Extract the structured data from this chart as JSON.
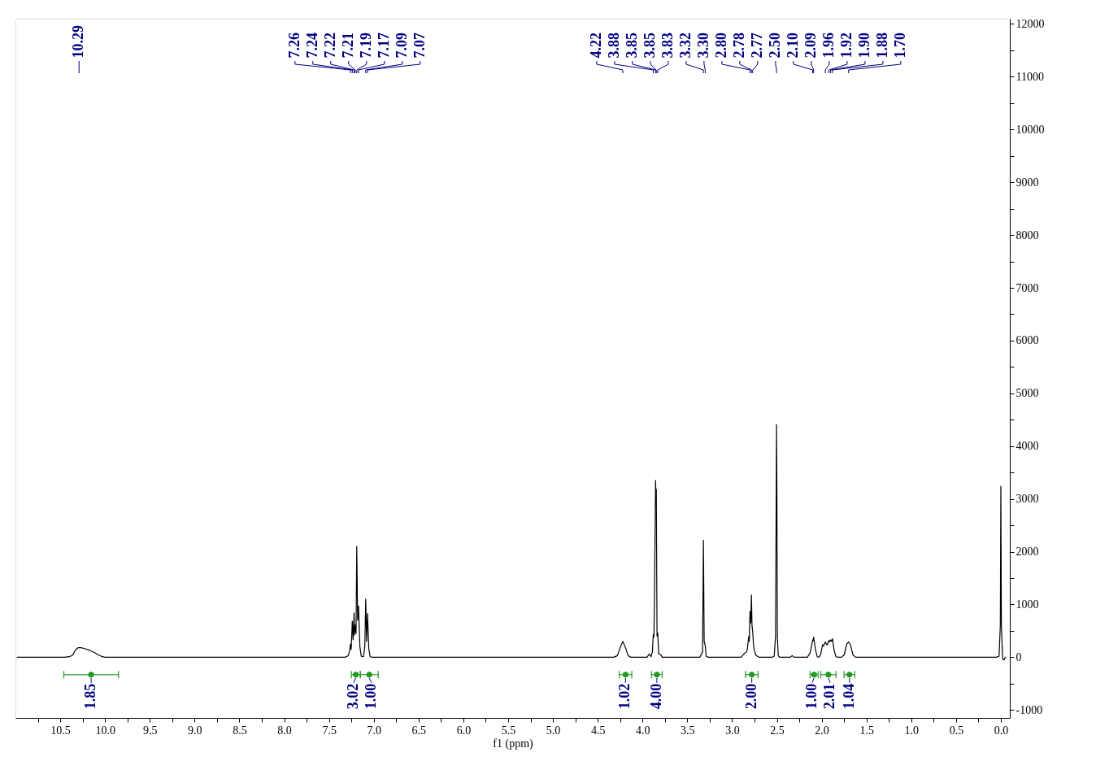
{
  "chart_data": {
    "type": "line",
    "xlabel": "f1 (ppm)",
    "x": [
      10.98,
      10.45,
      10.4,
      10.36,
      10.33,
      10.3,
      10.27,
      10.22,
      10.17,
      10.12,
      10.07,
      10.03,
      10.0,
      7.32,
      7.285,
      7.27,
      7.26,
      7.252,
      7.24,
      7.231,
      7.22,
      7.215,
      7.207,
      7.198,
      7.19,
      7.18,
      7.17,
      7.155,
      7.14,
      7.115,
      7.1,
      7.09,
      7.08,
      7.07,
      7.055,
      7.04,
      7.02,
      4.32,
      4.28,
      4.25,
      4.22,
      4.19,
      4.16,
      4.13,
      3.95,
      3.925,
      3.905,
      3.89,
      3.88,
      3.873,
      3.866,
      3.854,
      3.85,
      3.846,
      3.838,
      3.83,
      3.82,
      3.797,
      3.78,
      3.36,
      3.33,
      3.32,
      3.312,
      3.3,
      3.29,
      3.27,
      2.9,
      2.864,
      2.84,
      2.83,
      2.815,
      2.808,
      2.8,
      2.792,
      2.784,
      2.778,
      2.77,
      2.76,
      2.749,
      2.735,
      2.72,
      2.7,
      2.55,
      2.53,
      2.515,
      2.504,
      2.5,
      2.495,
      2.485,
      2.47,
      2.35,
      2.33,
      2.31,
      2.16,
      2.13,
      2.1,
      2.095,
      2.09,
      2.07,
      2.05,
      2.03,
      2.01,
      1.99,
      1.98,
      1.96,
      1.94,
      1.92,
      1.91,
      1.9,
      1.89,
      1.88,
      1.86,
      1.84,
      1.82,
      1.78,
      1.75,
      1.72,
      1.7,
      1.68,
      1.65,
      1.62,
      0.05,
      0.02,
      0.006,
      0.0,
      -0.006,
      -0.02,
      -0.035,
      -0.05
    ],
    "series": [
      {
        "color": "#000000",
        "values": [
          0,
          0,
          10,
          40,
          140,
          180,
          180,
          160,
          130,
          90,
          40,
          10,
          0,
          0,
          30,
          120,
          250,
          150,
          680,
          330,
          840,
          420,
          610,
          450,
          2100,
          700,
          970,
          200,
          20,
          10,
          200,
          1100,
          300,
          830,
          150,
          10,
          0,
          0,
          30,
          180,
          300,
          180,
          30,
          0,
          0,
          60,
          10,
          100,
          430,
          380,
          1200,
          3350,
          2900,
          3180,
          400,
          460,
          60,
          50,
          0,
          0,
          100,
          2220,
          300,
          220,
          20,
          0,
          0,
          70,
          100,
          150,
          390,
          300,
          870,
          650,
          1180,
          600,
          490,
          200,
          120,
          40,
          20,
          0,
          0,
          20,
          400,
          4410,
          3150,
          400,
          30,
          0,
          0,
          30,
          0,
          0,
          80,
          330,
          310,
          380,
          150,
          10,
          0,
          60,
          240,
          210,
          290,
          230,
          320,
          290,
          330,
          300,
          350,
          120,
          10,
          0,
          0,
          40,
          250,
          290,
          240,
          40,
          0,
          0,
          20,
          600,
          3240,
          600,
          -40,
          -50,
          0
        ]
      },
      {
        "type": "scatter",
        "color": "#229922",
        "marker": "circle",
        "x": [
          10.155,
          7.2,
          7.05,
          4.19,
          3.84,
          2.78,
          2.085,
          1.925,
          1.69
        ],
        "values": [
          -330,
          -330,
          -330,
          -330,
          -330,
          -330,
          -330,
          -330,
          -330
        ],
        "xerrors": [
          [
            9.85,
            10.46
          ],
          [
            7.15,
            7.25
          ],
          [
            6.95,
            7.15
          ],
          [
            4.12,
            4.26
          ],
          [
            3.78,
            3.9
          ],
          [
            2.71,
            2.85
          ],
          [
            2.04,
            2.13
          ],
          [
            1.84,
            2.01
          ],
          [
            1.63,
            1.75
          ]
        ]
      }
    ],
    "xlim": [
      11.0,
      -0.1
    ],
    "xticks": [
      {
        "value": 10.75,
        "label": null
      },
      {
        "value": 10.5,
        "label": "10.5"
      },
      {
        "value": 10.25,
        "label": null
      },
      {
        "value": 10.0,
        "label": "10.0"
      },
      {
        "value": 9.75,
        "label": null
      },
      {
        "value": 9.5,
        "label": "9.5"
      },
      {
        "value": 9.25,
        "label": null
      },
      {
        "value": 9.0,
        "label": "9.0"
      },
      {
        "value": 8.75,
        "label": null
      },
      {
        "value": 8.5,
        "label": "8.5"
      },
      {
        "value": 8.25,
        "label": null
      },
      {
        "value": 8.0,
        "label": "8.0"
      },
      {
        "value": 7.75,
        "label": null
      },
      {
        "value": 7.5,
        "label": "7.5"
      },
      {
        "value": 7.25,
        "label": null
      },
      {
        "value": 7.0,
        "label": "7.0"
      },
      {
        "value": 6.75,
        "label": null
      },
      {
        "value": 6.5,
        "label": "6.5"
      },
      {
        "value": 6.25,
        "label": null
      },
      {
        "value": 6.0,
        "label": "6.0"
      },
      {
        "value": 5.75,
        "label": null
      },
      {
        "value": 5.5,
        "label": "5.5"
      },
      {
        "value": 5.25,
        "label": null
      },
      {
        "value": 5.0,
        "label": "5.0"
      },
      {
        "value": 4.75,
        "label": null
      },
      {
        "value": 4.5,
        "label": "4.5"
      },
      {
        "value": 4.25,
        "label": null
      },
      {
        "value": 4.0,
        "label": "4.0"
      },
      {
        "value": 3.75,
        "label": null
      },
      {
        "value": 3.5,
        "label": "3.5"
      },
      {
        "value": 3.25,
        "label": null
      },
      {
        "value": 3.0,
        "label": "3.0"
      },
      {
        "value": 2.75,
        "label": null
      },
      {
        "value": 2.5,
        "label": "2.5"
      },
      {
        "value": 2.25,
        "label": null
      },
      {
        "value": 2.0,
        "label": "2.0"
      },
      {
        "value": 1.75,
        "label": null
      },
      {
        "value": 1.5,
        "label": "1.5"
      },
      {
        "value": 1.25,
        "label": null
      },
      {
        "value": 1.0,
        "label": "1.0"
      },
      {
        "value": 0.75,
        "label": null
      },
      {
        "value": 0.5,
        "label": "0.5"
      },
      {
        "value": 0.25,
        "label": null
      },
      {
        "value": 0.0,
        "label": "0.0"
      }
    ],
    "ylim": [
      -1150,
      12100
    ],
    "yticks": [
      -1000,
      {
        "value": -500,
        "label": null
      },
      0,
      {
        "value": 500,
        "label": null
      },
      1000,
      {
        "value": 1500,
        "label": null
      },
      2000,
      {
        "value": 2500,
        "label": null
      },
      3000,
      {
        "value": 3500,
        "label": null
      },
      4000,
      {
        "value": 4500,
        "label": null
      },
      5000,
      {
        "value": 5500,
        "label": null
      },
      6000,
      {
        "value": 6500,
        "label": null
      },
      7000,
      {
        "value": 7500,
        "label": null
      },
      8000,
      {
        "value": 8500,
        "label": null
      },
      9000,
      {
        "value": 9500,
        "label": null
      },
      10000,
      {
        "value": 10500,
        "label": null
      },
      11000,
      {
        "value": 11500,
        "label": null
      },
      12000
    ],
    "grid": false,
    "annotations": [
      {
        "text": "10.29",
        "x": 10.29
      },
      {
        "text": "7.26",
        "x": 7.26
      },
      {
        "text": "7.24",
        "x": 7.24
      },
      {
        "text": "7.22",
        "x": 7.22
      },
      {
        "text": "7.21",
        "x": 7.207
      },
      {
        "text": "7.19",
        "x": 7.19
      },
      {
        "text": "7.17",
        "x": 7.17
      },
      {
        "text": "7.09",
        "x": 7.09
      },
      {
        "text": "7.07",
        "x": 7.07
      },
      {
        "text": "4.22",
        "x": 4.22
      },
      {
        "text": "3.88",
        "x": 3.88
      },
      {
        "text": "3.85",
        "x": 3.854
      },
      {
        "text": "3.85",
        "x": 3.846
      },
      {
        "text": "3.83",
        "x": 3.83
      },
      {
        "text": "3.32",
        "x": 3.32
      },
      {
        "text": "3.30",
        "x": 3.3
      },
      {
        "text": "2.80",
        "x": 2.8
      },
      {
        "text": "2.78",
        "x": 2.784
      },
      {
        "text": "2.77",
        "x": 2.77
      },
      {
        "text": "2.50",
        "x": 2.504
      },
      {
        "text": "2.10",
        "x": 2.1
      },
      {
        "text": "2.09",
        "x": 2.09
      },
      {
        "text": "1.96",
        "x": 1.96
      },
      {
        "text": "1.92",
        "x": 1.92
      },
      {
        "text": "1.90",
        "x": 1.9
      },
      {
        "text": "1.88",
        "x": 1.88
      },
      {
        "text": "1.70",
        "x": 1.7
      },
      {
        "text": "1.85",
        "x": 10.155,
        "y": -330
      },
      {
        "text": "3.02",
        "x": 7.2,
        "y": -330
      },
      {
        "text": "1.00",
        "x": 7.05,
        "y": -330
      },
      {
        "text": "1.02",
        "x": 4.19,
        "y": -330
      },
      {
        "text": "4.00",
        "x": 3.84,
        "y": -330
      },
      {
        "text": "2.00",
        "x": 2.78,
        "y": -330
      },
      {
        "text": "1.00",
        "x": 2.085,
        "y": -330
      },
      {
        "text": "2.01",
        "x": 1.925,
        "y": -330
      },
      {
        "text": "1.04",
        "x": 1.69,
        "y": -330
      }
    ]
  }
}
